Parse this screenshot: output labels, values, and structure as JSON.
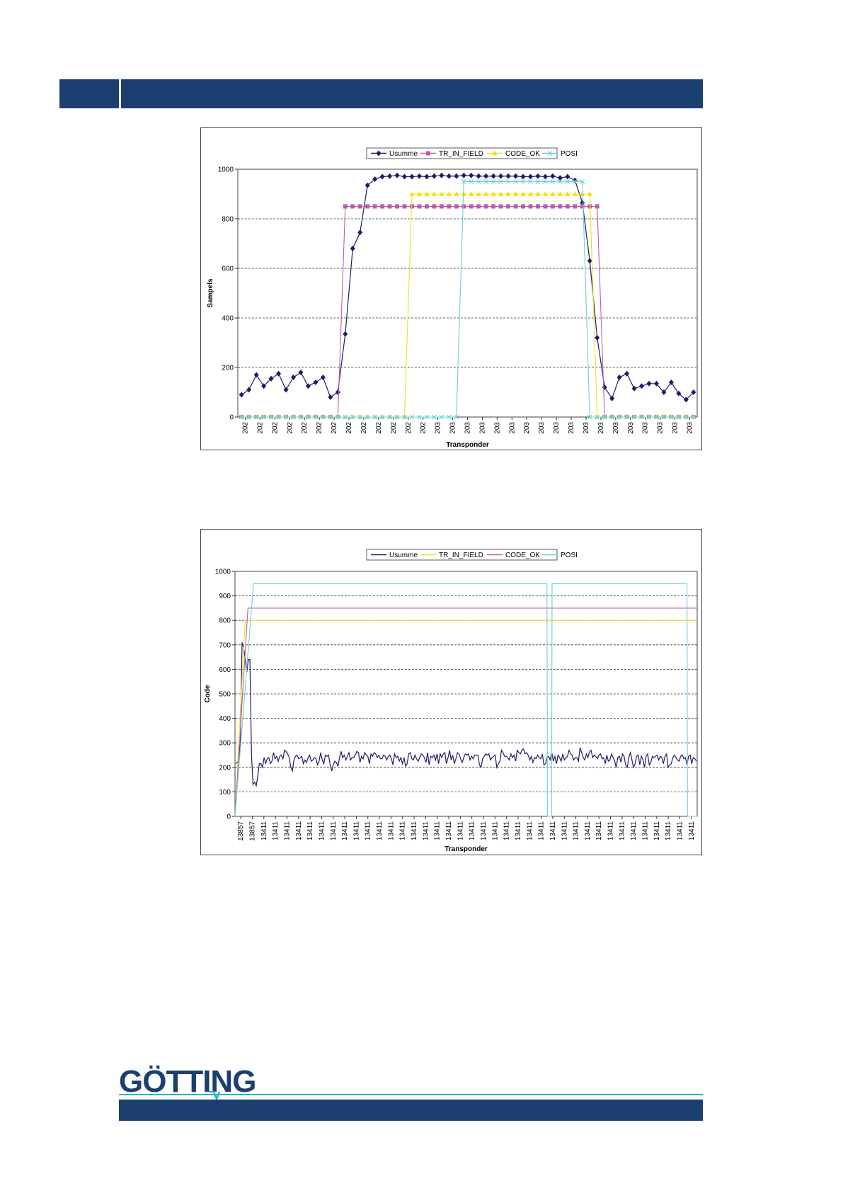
{
  "brand": {
    "name": "GÖTTING",
    "primary": "#1b3f6e",
    "accent": "#23b4d2"
  },
  "chart_data": [
    {
      "type": "line",
      "title": "",
      "xlabel": "Transponder",
      "ylabel": "Sampels",
      "ylim": [
        0,
        1000
      ],
      "yticks": [
        0,
        200,
        400,
        600,
        800,
        1000
      ],
      "grid": true,
      "legend": "top",
      "x_tick_labels": [
        "202",
        "202",
        "202",
        "202",
        "202",
        "202",
        "202",
        "202",
        "202",
        "202",
        "202",
        "202",
        "202",
        "203",
        "203",
        "203",
        "203",
        "203",
        "203",
        "203",
        "203",
        "203",
        "203",
        "203",
        "203",
        "203",
        "203",
        "203",
        "203",
        "203",
        "203"
      ],
      "series": [
        {
          "name": "Usumme",
          "color": "#1f1a6e",
          "marker": "diamond",
          "values": [
            90,
            110,
            170,
            125,
            155,
            175,
            110,
            160,
            180,
            125,
            140,
            160,
            80,
            100,
            335,
            680,
            745,
            935,
            960,
            970,
            972,
            975,
            970,
            970,
            972,
            970,
            972,
            975,
            972,
            972,
            975,
            975,
            972,
            972,
            972,
            972,
            972,
            972,
            970,
            970,
            972,
            970,
            972,
            965,
            970,
            955,
            865,
            630,
            320,
            120,
            75,
            160,
            175,
            115,
            125,
            135,
            135,
            100,
            140,
            95,
            70,
            100
          ]
        },
        {
          "name": "TR_IN_FIELD",
          "color": "#c458a8",
          "marker": "square",
          "values": [
            0,
            0,
            0,
            0,
            0,
            0,
            0,
            0,
            0,
            0,
            0,
            0,
            0,
            0,
            850,
            850,
            850,
            850,
            850,
            850,
            850,
            850,
            850,
            850,
            850,
            850,
            850,
            850,
            850,
            850,
            850,
            850,
            850,
            850,
            850,
            850,
            850,
            850,
            850,
            850,
            850,
            850,
            850,
            850,
            850,
            850,
            850,
            850,
            850,
            0,
            0,
            0,
            0,
            0,
            0,
            0,
            0,
            0,
            0,
            0,
            0,
            0
          ]
        },
        {
          "name": "CODE_OK",
          "color": "#f0e020",
          "marker": "triangle",
          "values": [
            0,
            0,
            0,
            0,
            0,
            0,
            0,
            0,
            0,
            0,
            0,
            0,
            0,
            0,
            0,
            0,
            0,
            0,
            0,
            0,
            0,
            0,
            0,
            900,
            900,
            900,
            900,
            900,
            900,
            900,
            900,
            900,
            900,
            900,
            900,
            900,
            900,
            900,
            900,
            900,
            900,
            900,
            900,
            900,
            900,
            900,
            900,
            900,
            0,
            0,
            0,
            0,
            0,
            0,
            0,
            0,
            0,
            0,
            0,
            0,
            0,
            0
          ]
        },
        {
          "name": "POSI",
          "color": "#6fcfd8",
          "marker": "x",
          "values": [
            0,
            0,
            0,
            0,
            0,
            0,
            0,
            0,
            0,
            0,
            0,
            0,
            0,
            0,
            0,
            0,
            0,
            0,
            0,
            0,
            0,
            0,
            0,
            0,
            0,
            0,
            0,
            0,
            0,
            0,
            950,
            950,
            950,
            950,
            950,
            950,
            950,
            950,
            950,
            950,
            950,
            950,
            950,
            950,
            950,
            950,
            950,
            0,
            0,
            0,
            0,
            0,
            0,
            0,
            0,
            0,
            0,
            0,
            0,
            0,
            0,
            0
          ]
        }
      ]
    },
    {
      "type": "line",
      "title": "",
      "xlabel": "Transponder",
      "ylabel": "Code",
      "ylim": [
        0,
        1000
      ],
      "yticks": [
        0,
        100,
        200,
        300,
        400,
        500,
        600,
        700,
        800,
        900,
        1000
      ],
      "grid": true,
      "legend": "top",
      "x_tick_labels": [
        "13857",
        "13857",
        "13411",
        "13411",
        "13411",
        "13411",
        "13411",
        "13411",
        "13411",
        "13411",
        "13411",
        "13411",
        "13411",
        "13411",
        "13411",
        "13411",
        "13411",
        "13411",
        "13411",
        "13411",
        "13411",
        "13411",
        "13411",
        "13411",
        "13411",
        "13411",
        "13411",
        "13411",
        "13411",
        "13411",
        "13411",
        "13411",
        "13411",
        "13411",
        "13411",
        "13411",
        "13411",
        "13411",
        "13411",
        "13411"
      ],
      "series": [
        {
          "name": "Usumme",
          "color": "#1f1a6e",
          "marker": "none",
          "values": [
            215,
            220,
            240,
            320,
            710,
            690,
            640,
            590,
            640,
            640,
            250,
            130,
            140,
            125,
            165,
            215,
            215,
            200,
            240,
            215,
            235,
            240,
            215,
            225,
            260,
            235,
            245,
            225,
            245,
            250,
            235,
            270,
            265,
            255,
            240,
            200,
            185,
            230,
            245,
            250,
            235,
            240,
            245,
            215,
            230,
            220,
            240,
            250,
            225,
            230,
            240,
            235,
            210,
            225,
            260,
            230,
            215,
            250,
            245,
            250,
            210,
            185,
            210,
            225,
            220,
            205,
            240,
            265,
            240,
            250,
            230,
            245,
            260,
            230,
            240,
            240,
            250,
            265,
            260,
            220,
            245,
            235,
            260,
            250,
            245,
            215,
            255,
            245,
            260,
            255,
            240,
            250,
            235,
            235,
            250,
            245,
            230,
            245,
            250,
            235,
            210,
            255,
            240,
            245,
            225,
            240,
            215,
            240,
            205,
            215,
            255,
            260,
            235,
            230,
            250,
            235,
            225,
            240,
            255,
            250,
            240,
            220,
            260,
            210,
            245,
            240,
            250,
            230,
            255,
            215,
            255,
            240,
            255,
            260,
            215,
            240,
            270,
            230,
            250,
            215,
            235,
            260,
            255,
            235,
            220,
            240,
            255,
            250,
            255,
            230,
            245,
            235,
            250,
            250,
            250,
            210,
            200,
            235,
            245,
            255,
            250,
            255,
            230,
            240,
            245,
            250,
            200,
            215,
            225,
            270,
            260,
            245,
            245,
            240,
            230,
            255,
            240,
            250,
            225,
            270,
            260,
            255,
            270,
            275,
            255,
            260,
            250,
            230,
            245,
            220,
            240,
            235,
            250,
            240,
            235,
            255,
            210,
            215,
            240,
            245,
            230,
            260,
            225,
            245,
            215,
            250,
            240,
            225,
            255,
            230,
            240,
            245,
            270,
            255,
            250,
            230,
            240,
            240,
            225,
            280,
            260,
            240,
            230,
            255,
            240,
            265,
            270,
            240,
            250,
            245,
            235,
            250,
            255,
            235,
            240,
            215,
            250,
            225,
            230,
            255,
            240,
            225,
            200,
            240,
            245,
            220,
            255,
            245,
            210,
            200,
            240,
            260,
            230,
            200,
            215,
            245,
            250,
            210,
            245,
            230,
            200,
            245,
            255,
            210,
            220,
            245,
            240,
            245,
            250,
            230,
            245,
            240,
            215,
            245,
            255,
            200,
            210,
            215,
            240,
            250,
            240,
            230,
            225,
            245,
            250,
            235,
            240,
            210,
            245,
            250,
            215,
            240,
            235,
            225
          ]
        },
        {
          "name": "TR_IN_FIELD",
          "color": "#f0e020",
          "marker": "none",
          "steps": [
            [
              0,
              0
            ],
            [
              0.022,
              800
            ],
            [
              1,
              800
            ]
          ]
        },
        {
          "name": "CODE_OK",
          "color": "#c458a8",
          "marker": "none",
          "steps": [
            [
              0,
              0
            ],
            [
              0.028,
              850
            ],
            [
              1,
              850
            ]
          ]
        },
        {
          "name": "POSI",
          "color": "#6fcfd8",
          "marker": "none",
          "steps": [
            [
              0,
              0
            ],
            [
              0.04,
              950
            ],
            [
              0.675,
              950
            ],
            [
              0.676,
              0
            ],
            [
              0.685,
              0
            ],
            [
              0.686,
              950
            ],
            [
              0.978,
              950
            ],
            [
              0.979,
              0
            ],
            [
              1,
              0
            ]
          ]
        }
      ]
    }
  ]
}
